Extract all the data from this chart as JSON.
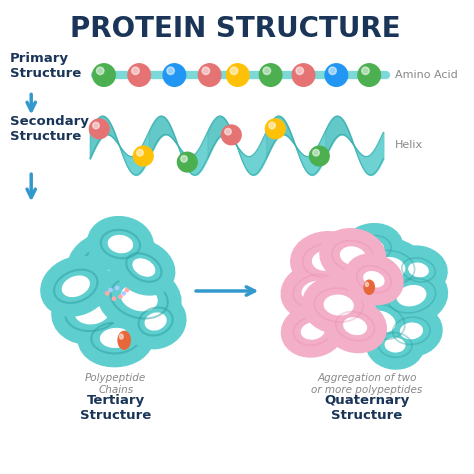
{
  "title": "PROTEIN STRUCTURE",
  "title_color": "#1a3558",
  "bg_color": "#ffffff",
  "teal": "#45bfc0",
  "teal_dark": "#2da0a2",
  "teal_fill": "#5ecece",
  "pink": "#f4afc8",
  "pink_dark": "#e890b0",
  "pink_fill": "#f9c8d8",
  "blue_arrow": "#3399cc",
  "label_color": "#1a3558",
  "gray_label": "#888888",
  "orange": "#e8673a",
  "orange_light": "#f08860",
  "primary_label": "Primary\nStructure",
  "secondary_label": "Secondary\nStructure",
  "amino_acid_label": "Amino Acid",
  "helix_label": "Helix",
  "polypeptide_label": "Polypeptide\nChains",
  "aggregation_label": "Aggregation of two\nor more polypeptides",
  "tertiary_label": "Tertiary\nStructure",
  "quaternary_label": "Quaternary\nStructure",
  "bead_colors_primary": [
    "#4caf50",
    "#e57373",
    "#2196f3",
    "#e57373",
    "#ffc107",
    "#4caf50",
    "#e57373",
    "#2196f3"
  ],
  "bead_colors_helix": [
    "#e57373",
    "#ffc107",
    "#4caf50",
    "#e57373",
    "#ffc107",
    "#4caf50",
    "#2196f3",
    "#e57373",
    "#4caf50"
  ]
}
